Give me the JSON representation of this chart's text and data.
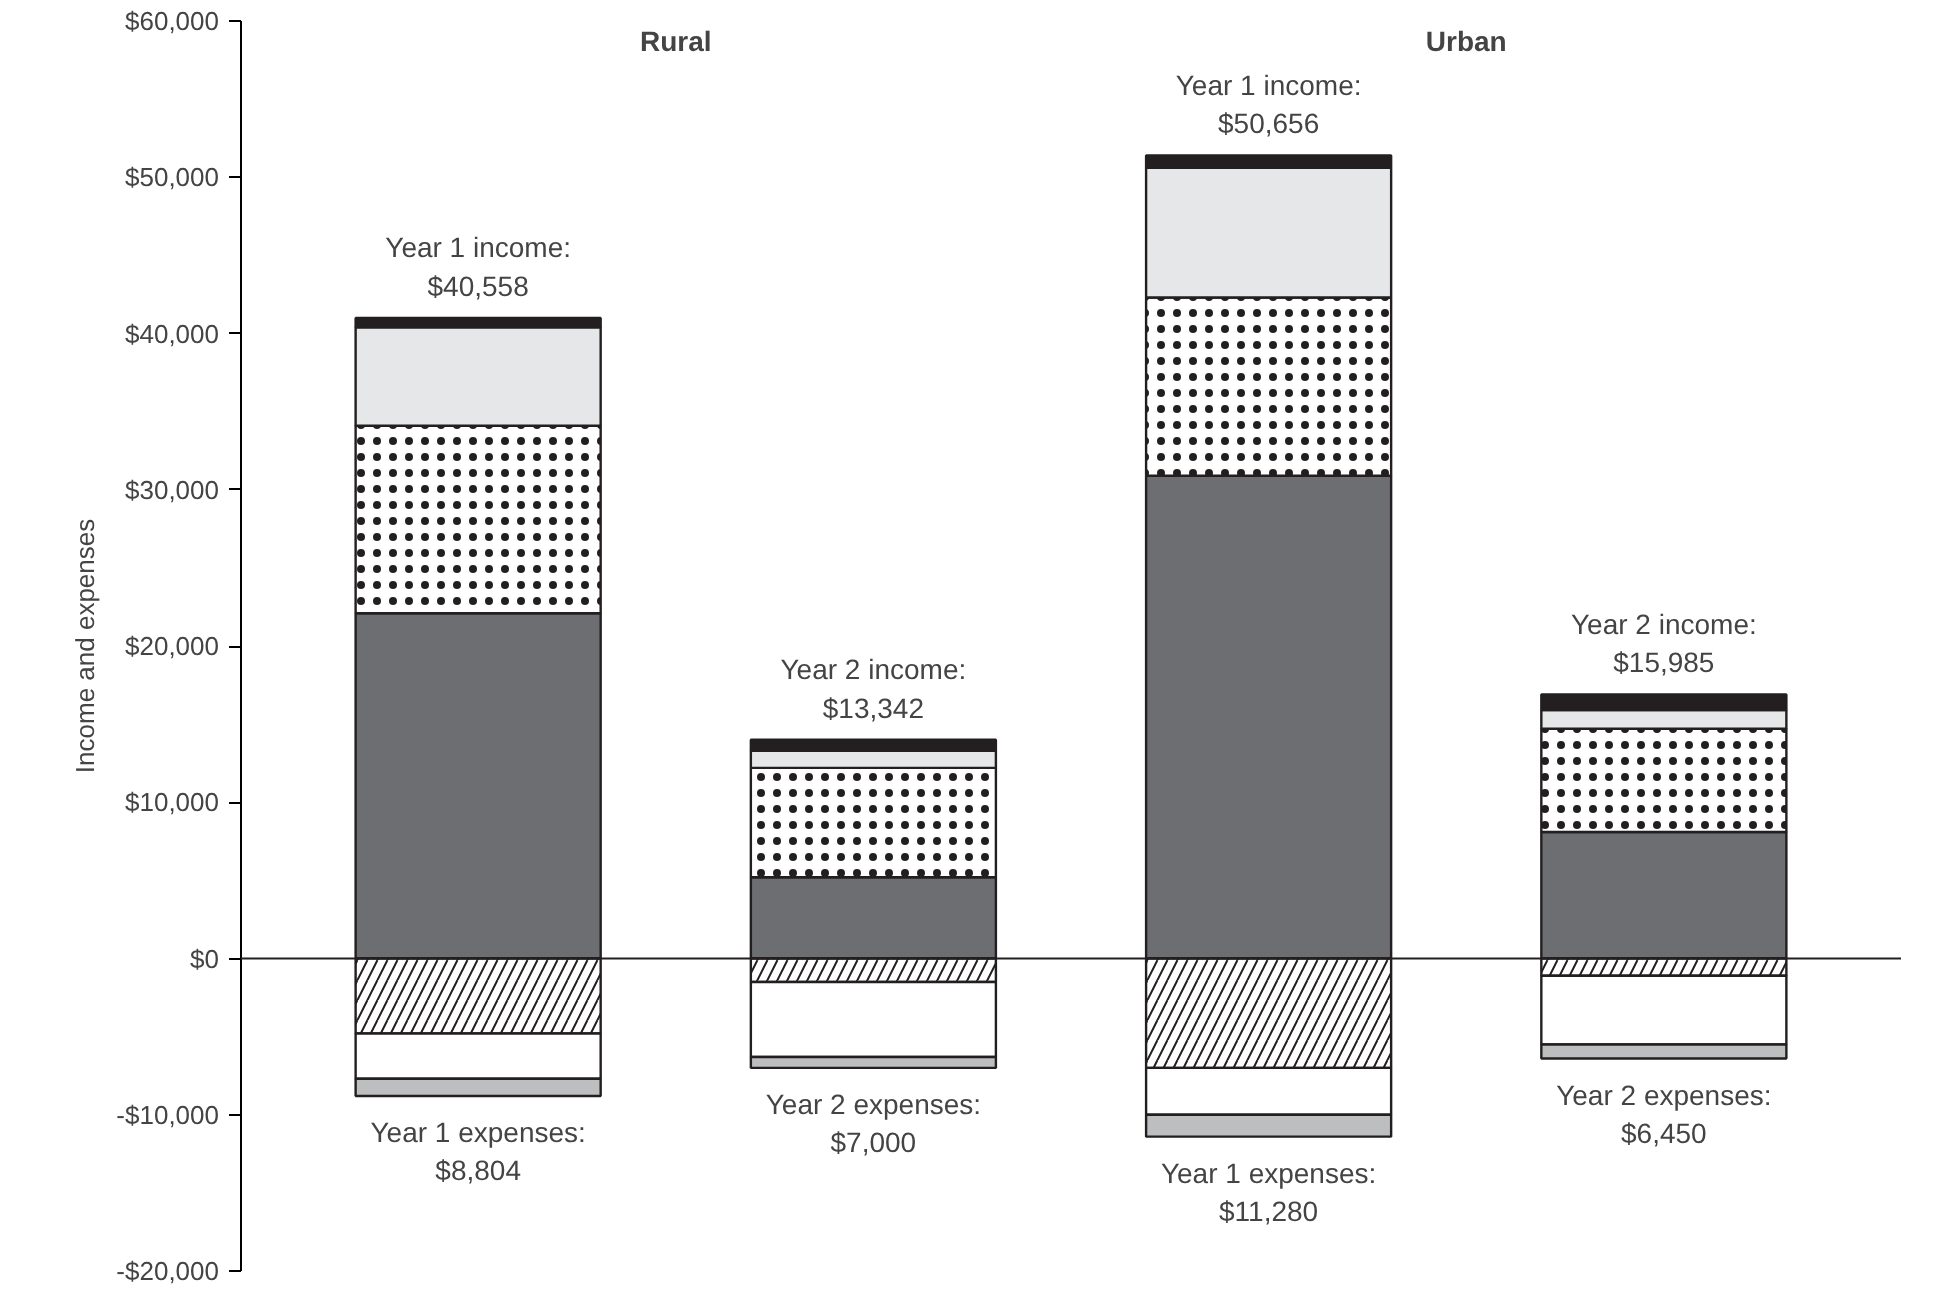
{
  "chart_data": {
    "type": "bar",
    "stacked": true,
    "ylabel": "Income and expenses",
    "categories": [
      null,
      null,
      null,
      null
    ],
    "series": [
      {
        "color": "#6d6e71",
        "values": [
          22100,
          5200,
          30900,
          8100
        ]
      },
      {
        "color": "#ffffff",
        "values": [
          12000,
          7000,
          11400,
          6600
        ]
      },
      {
        "color": "#e6e7e8",
        "values": [
          6300,
          1100,
          8300,
          1200
        ]
      },
      {
        "color": "#231f20",
        "values": [
          600,
          700,
          800,
          1000
        ]
      },
      {
        "color": "#ffffff",
        "values": [
          -4800,
          -1500,
          -7000,
          -1100
        ]
      },
      {
        "color": "#ffffff",
        "values": [
          -2900,
          -4800,
          -3000,
          -4400
        ]
      },
      {
        "color": "#bcbec0",
        "values": [
          -1100,
          -700,
          -1400,
          -900
        ]
      }
    ],
    "ylim": [
      -20000,
      60000
    ],
    "yticks": [
      {
        "value": -20000,
        "label": "-$20,000"
      },
      {
        "value": -10000,
        "label": "-$10,000"
      },
      {
        "value": 0,
        "label": "$0"
      },
      {
        "value": 10000,
        "label": "$10,000"
      },
      {
        "value": 20000,
        "label": "$20,000"
      },
      {
        "value": 30000,
        "label": "$30,000"
      },
      {
        "value": 40000,
        "label": "$40,000"
      },
      {
        "value": 50000,
        "label": "$50,000"
      },
      {
        "value": 60000,
        "label": "$60,000"
      }
    ],
    "annotations": [
      "Rural",
      "Urban",
      "Year 1 income:\n$40,558",
      "Year 2 income:\n$13,342",
      "Year 1 income:\n$50,656",
      "Year 2 income:\n$15,985",
      "Year 1 expenses:\n$8,804",
      "Year 2 expenses:\n$7,000",
      "Year 1 expenses:\n$11,280",
      "Year 2 expenses:\n$6,450"
    ]
  }
}
